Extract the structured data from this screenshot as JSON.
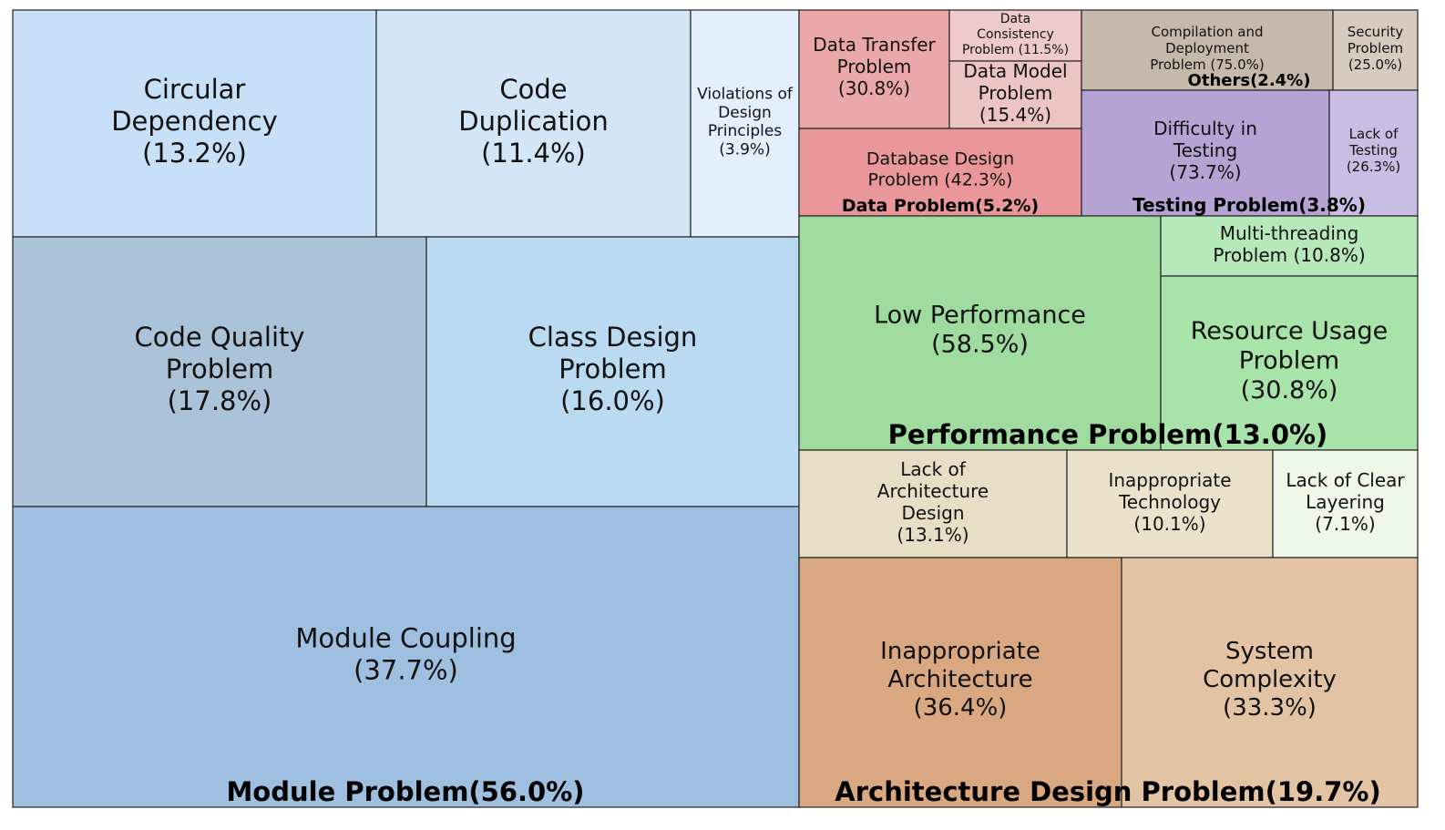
{
  "chart_data": {
    "type": "treemap",
    "groups": [
      {
        "name": "Module Problem",
        "value": "56.0%",
        "label": "Module Problem(56.0%)",
        "items": [
          {
            "label": "Circular Dependency",
            "value": "13.2%",
            "color": "#c7e0f7"
          },
          {
            "label": "Code Duplication",
            "value": "11.4%",
            "color": "#d3e6f8"
          },
          {
            "label": "Violations of Design Principles",
            "value": "3.9%",
            "color": "#e3effd"
          },
          {
            "label": "Code Quality Problem",
            "value": "17.8%",
            "color": "#abc3d8"
          },
          {
            "label": "Class Design Problem",
            "value": "16.0%",
            "color": "#badaf2"
          },
          {
            "label": "Module Coupling",
            "value": "37.7%",
            "color": "#9ebfdf"
          }
        ]
      },
      {
        "name": "Data Problem",
        "value": "5.2%",
        "label": "Data Problem(5.2%)",
        "items": [
          {
            "label": "Data Transfer Problem",
            "value": "30.8%",
            "color": "#eba8a8"
          },
          {
            "label": "Data Consistency Problem",
            "value": "11.5%",
            "color": "#efcaca"
          },
          {
            "label": "Data Model Problem",
            "value": "15.4%",
            "color": "#ecc4c4"
          },
          {
            "label": "Database Design Problem",
            "value": "42.3%",
            "color": "#ea9799"
          }
        ]
      },
      {
        "name": "Others",
        "value": "2.4%",
        "label": "Others(2.4%)",
        "items": [
          {
            "label": "Compilation and Deployment Problem",
            "value": "75.0%",
            "color": "#c6b8aa"
          },
          {
            "label": "Security Problem",
            "value": "25.0%",
            "color": "#d7cbc0"
          }
        ]
      },
      {
        "name": "Testing Problem",
        "value": "3.8%",
        "label": "Testing Problem(3.8%)",
        "items": [
          {
            "label": "Difficulty in Testing",
            "value": "73.7%",
            "color": "#b6a2d3"
          },
          {
            "label": "Lack of Testing",
            "value": "26.3%",
            "color": "#c8bde2"
          }
        ]
      },
      {
        "name": "Performance Problem",
        "value": "13.0%",
        "label": "Performance Problem(13.0%)",
        "items": [
          {
            "label": "Low Performance",
            "value": "58.5%",
            "color": "#9fdb9f"
          },
          {
            "label": "Multi-threading Problem",
            "value": "10.8%",
            "color": "#b6e8b9"
          },
          {
            "label": "Resource Usage Problem",
            "value": "30.8%",
            "color": "#a8e3a9"
          }
        ]
      },
      {
        "name": "Architecture Design Problem",
        "value": "19.7%",
        "label": "Architecture Design Problem(19.7%)",
        "items": [
          {
            "label": "Lack of Architecture Design",
            "value": "13.1%",
            "color": "#e8dec6"
          },
          {
            "label": "Inappropriate Technology",
            "value": "10.1%",
            "color": "#ece2cc"
          },
          {
            "label": "Lack of Clear Layering",
            "value": "7.1%",
            "color": "#eff7e8"
          },
          {
            "label": "Inappropriate Architecture",
            "value": "36.4%",
            "color": "#daa880"
          },
          {
            "label": "System Complexity",
            "value": "33.3%",
            "color": "#e2c4a4"
          }
        ]
      }
    ]
  }
}
